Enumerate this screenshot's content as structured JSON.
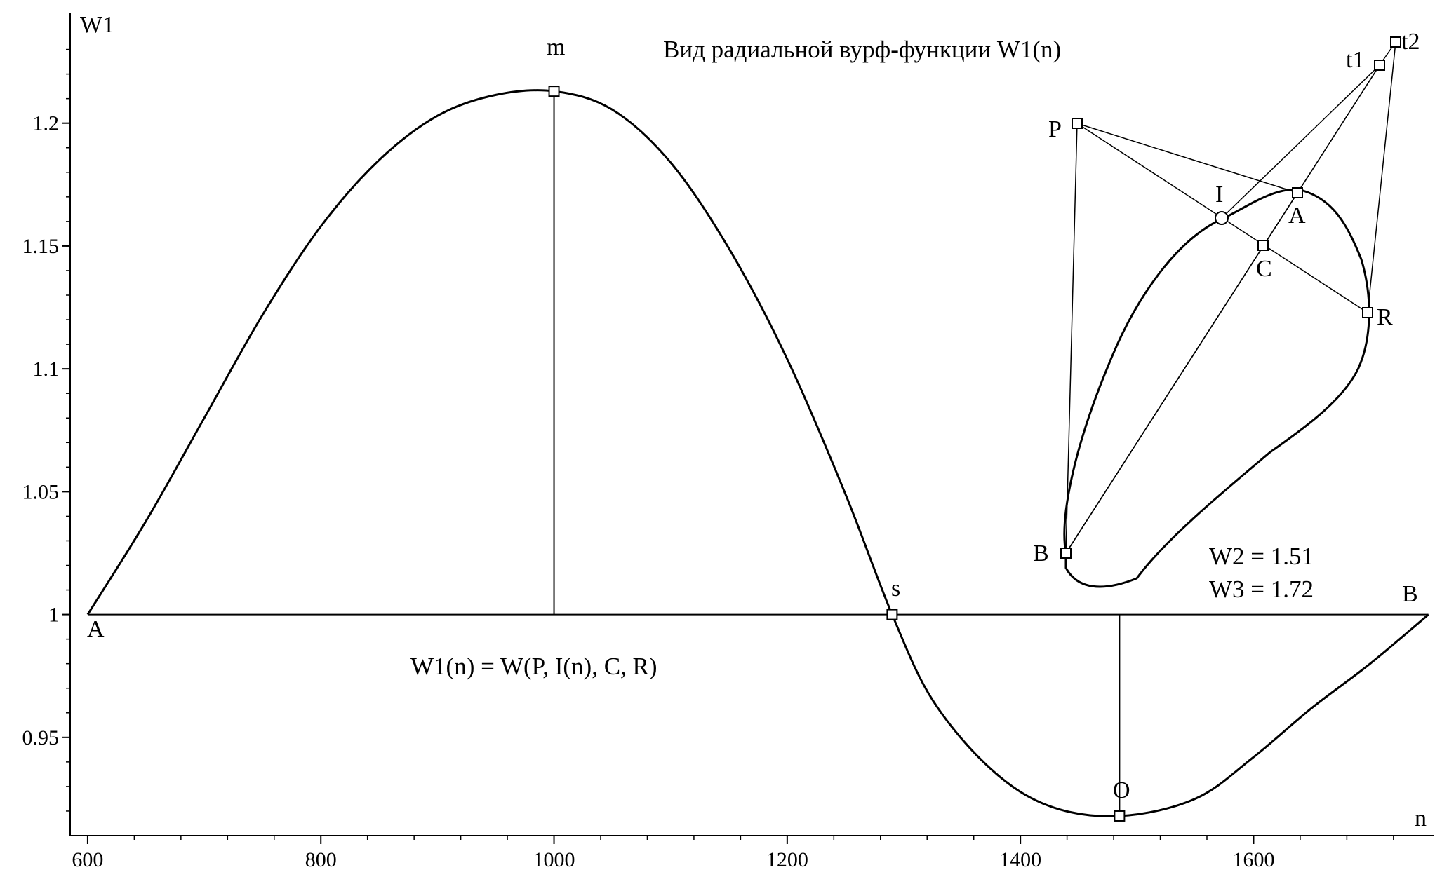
{
  "chart_data": {
    "type": "line",
    "title": "Вид радиальной вурф-функции W1(n)",
    "xlabel": "n",
    "ylabel": "W1",
    "xlim": [
      585,
      1755
    ],
    "ylim": [
      0.91,
      1.245
    ],
    "x_ticks": [
      600,
      800,
      1000,
      1200,
      1400,
      1600
    ],
    "x_tick_labels": [
      "600",
      "800",
      "1000",
      "1200",
      "1400",
      "1600"
    ],
    "y_ticks": [
      0.95,
      1,
      1.05,
      1.1,
      1.15,
      1.2
    ],
    "y_tick_labels": [
      "0.95",
      "1",
      "1.05",
      "1.1",
      "1.15",
      "1.2"
    ],
    "grid": false,
    "legend": "none",
    "series": [
      {
        "color": "#000000",
        "points": [
          [
            600,
            1.0
          ],
          [
            650,
            1.038
          ],
          [
            700,
            1.08
          ],
          [
            750,
            1.122
          ],
          [
            800,
            1.158
          ],
          [
            850,
            1.185
          ],
          [
            900,
            1.203
          ],
          [
            950,
            1.2115
          ],
          [
            1000,
            1.213
          ],
          [
            1050,
            1.2055
          ],
          [
            1100,
            1.184
          ],
          [
            1150,
            1.149
          ],
          [
            1200,
            1.104
          ],
          [
            1250,
            1.049
          ],
          [
            1290,
            1.0
          ],
          [
            1325,
            0.965
          ],
          [
            1375,
            0.937
          ],
          [
            1425,
            0.922
          ],
          [
            1485,
            0.918
          ],
          [
            1550,
            0.925
          ],
          [
            1600,
            0.942
          ],
          [
            1650,
            0.962
          ],
          [
            1700,
            0.98
          ],
          [
            1750,
            1.0
          ]
        ]
      }
    ],
    "baseline_y": 1,
    "points_of_interest": [
      {
        "label": "A",
        "x": 600,
        "y": 1.0
      },
      {
        "label": "m",
        "x": 1000,
        "y": 1.213
      },
      {
        "label": "s",
        "x": 1290,
        "y": 1.0
      },
      {
        "label": "O",
        "x": 1485,
        "y": 0.918
      },
      {
        "label": "B",
        "x": 1750,
        "y": 1.0
      }
    ],
    "annotations": {
      "formula": "W1(n) = W(P, I(n), C, R)",
      "w2": "W2 = 1.51",
      "w3": "W3 = 1.72"
    },
    "inset_labels": {
      "P": "P",
      "I": "I",
      "A": "A",
      "C": "C",
      "R": "R",
      "B": "B",
      "t1": "t1",
      "t2": "t2"
    }
  }
}
